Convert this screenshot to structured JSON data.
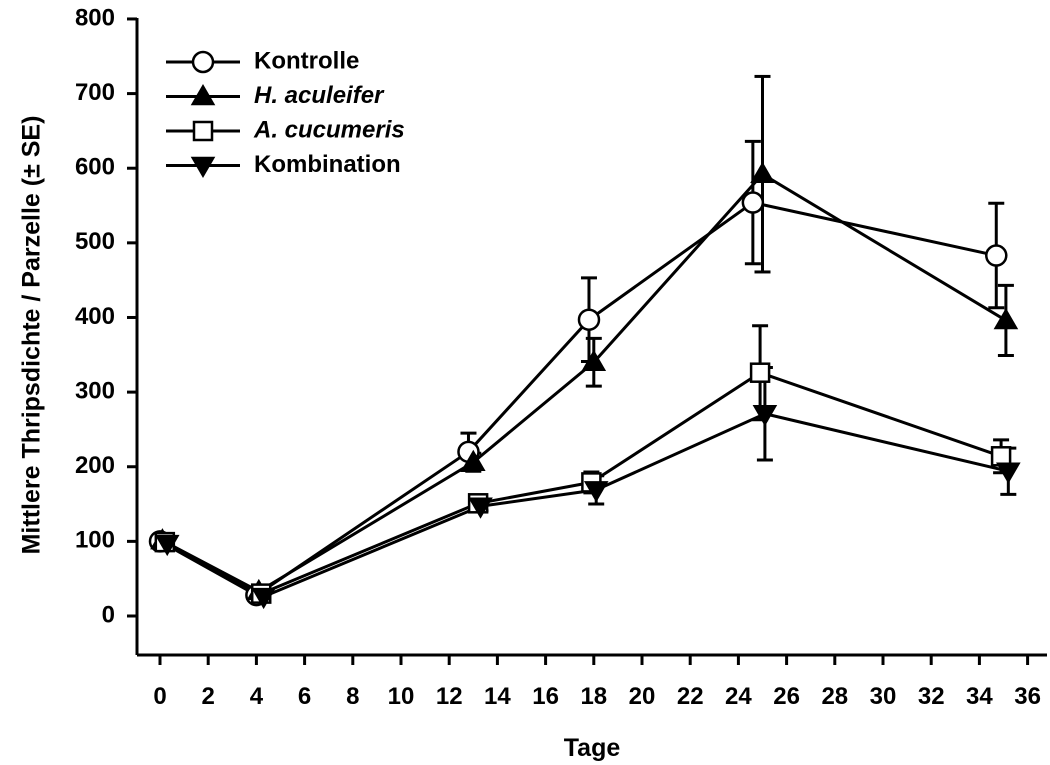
{
  "chart_data": {
    "type": "line",
    "xlabel": "Tage",
    "ylabel": "Mittlere Thripsdichte / Parzelle (± SE)",
    "xlim": [
      -1,
      37
    ],
    "ylim": [
      -50,
      800
    ],
    "x_ticks": [
      "0",
      "2",
      "4",
      "6",
      "8",
      "10",
      "12",
      "14",
      "16",
      "18",
      "20",
      "22",
      "24",
      "26",
      "28",
      "30",
      "32",
      "34",
      "36"
    ],
    "y_ticks": [
      "0",
      "100",
      "200",
      "300",
      "400",
      "500",
      "600",
      "700",
      "800"
    ],
    "grid": false,
    "legend_position": "top-left",
    "series": [
      {
        "name": "Kontrolle",
        "marker": "circle-open",
        "italic": false,
        "points": [
          {
            "x": 0,
            "y": 100,
            "err": null
          },
          {
            "x": 4,
            "y": 28,
            "err": null
          },
          {
            "x": 12.8,
            "y": 220,
            "err": 25
          },
          {
            "x": 17.8,
            "y": 397,
            "err": 56
          },
          {
            "x": 24.6,
            "y": 554,
            "err": 82
          },
          {
            "x": 34.7,
            "y": 483,
            "err": 70
          }
        ]
      },
      {
        "name": "H. aculeifer",
        "marker": "triangle-up-filled",
        "italic": true,
        "points": [
          {
            "x": 0.1,
            "y": 101,
            "err": null
          },
          {
            "x": 4.1,
            "y": 33,
            "err": null
          },
          {
            "x": 13,
            "y": 206,
            "err": 12
          },
          {
            "x": 18,
            "y": 340,
            "err": 32
          },
          {
            "x": 25,
            "y": 592,
            "err": 131
          },
          {
            "x": 35.1,
            "y": 396,
            "err": 47
          }
        ]
      },
      {
        "name": "A. cucumeris",
        "marker": "square-open",
        "italic": true,
        "points": [
          {
            "x": 0.2,
            "y": 99,
            "err": null
          },
          {
            "x": 4.2,
            "y": 30,
            "err": null
          },
          {
            "x": 13.2,
            "y": 151,
            "err": 8
          },
          {
            "x": 17.9,
            "y": 179,
            "err": 14
          },
          {
            "x": 24.9,
            "y": 326,
            "err": 63
          },
          {
            "x": 34.9,
            "y": 214,
            "err": 22
          }
        ]
      },
      {
        "name": "Kombination",
        "marker": "triangle-down-filled",
        "italic": false,
        "points": [
          {
            "x": 0.3,
            "y": 97,
            "err": null
          },
          {
            "x": 4.3,
            "y": 26,
            "err": null
          },
          {
            "x": 13.3,
            "y": 147,
            "err": 6
          },
          {
            "x": 18.1,
            "y": 169,
            "err": 19
          },
          {
            "x": 25.1,
            "y": 271,
            "err": 62
          },
          {
            "x": 35.2,
            "y": 194,
            "err": 31
          }
        ]
      }
    ]
  }
}
